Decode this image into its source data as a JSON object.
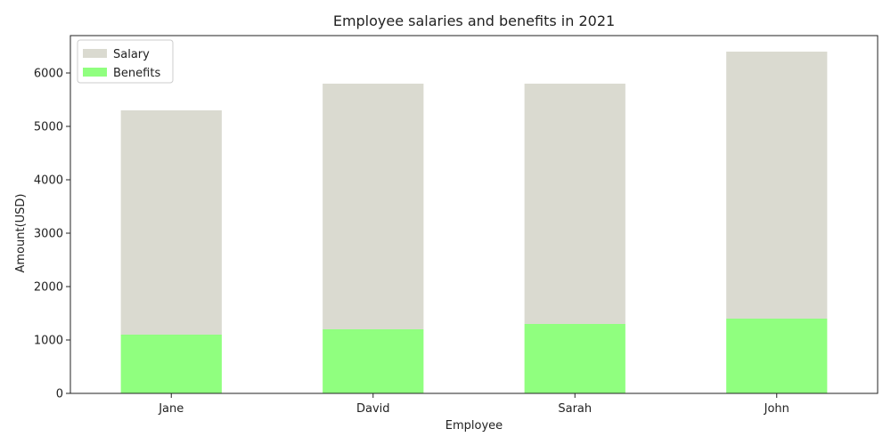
{
  "chart_data": {
    "type": "bar",
    "stacked": true,
    "title": "Employee salaries and benefits in 2021",
    "xlabel": "Employee",
    "ylabel": "Amount(USD)",
    "categories": [
      "Jane",
      "David",
      "Sarah",
      "John"
    ],
    "series": [
      {
        "name": "Benefits",
        "color": "#90ff7f",
        "values": [
          1100,
          1200,
          1300,
          1400
        ]
      },
      {
        "name": "Salary",
        "color": "#dadad0",
        "values": [
          4200,
          4600,
          4500,
          5000
        ]
      }
    ],
    "ylim": [
      0,
      6700
    ],
    "yticks": [
      0,
      1000,
      2000,
      3000,
      4000,
      5000,
      6000
    ],
    "legend": {
      "position": "top-left",
      "items": [
        {
          "label": "Salary",
          "color": "#dadad0"
        },
        {
          "label": "Benefits",
          "color": "#90ff7f"
        }
      ]
    },
    "grid": false
  }
}
